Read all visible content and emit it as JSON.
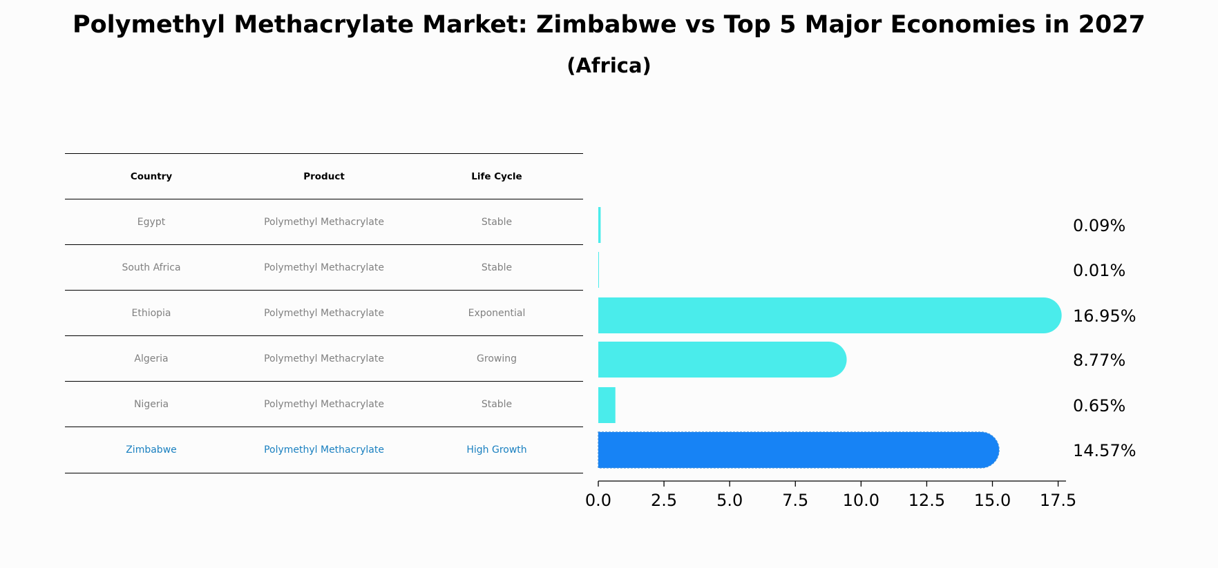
{
  "title": "Polymethyl Methacrylate Market: Zimbabwe vs Top 5 Major Economies in 2027",
  "subtitle": "(Africa)",
  "table": {
    "headers": [
      "Country",
      "Product",
      "Life Cycle"
    ],
    "rows": [
      [
        "Egypt",
        "Polymethyl Methacrylate",
        "Stable"
      ],
      [
        "South Africa",
        "Polymethyl Methacrylate",
        "Stable"
      ],
      [
        "Ethiopia",
        "Polymethyl Methacrylate",
        "Exponential"
      ],
      [
        "Algeria",
        "Polymethyl Methacrylate",
        "Growing"
      ],
      [
        "Nigeria",
        "Polymethyl Methacrylate",
        "Stable"
      ],
      [
        "Zimbabwe",
        "Polymethyl Methacrylate",
        "High Growth"
      ]
    ],
    "highlight_row": 5
  },
  "chart_data": {
    "type": "bar",
    "orientation": "horizontal",
    "categories": [
      "Egypt",
      "South Africa",
      "Ethiopia",
      "Algeria",
      "Nigeria",
      "Zimbabwe"
    ],
    "values": [
      0.09,
      0.01,
      16.95,
      8.77,
      0.65,
      14.57
    ],
    "value_labels": [
      "0.09%",
      "0.01%",
      "16.95%",
      "8.77%",
      "0.65%",
      "14.57%"
    ],
    "xlim": [
      0,
      17.8
    ],
    "xticks": [
      0.0,
      2.5,
      5.0,
      7.5,
      10.0,
      12.5,
      15.0,
      17.5
    ],
    "xtick_labels": [
      "0.0",
      "2.5",
      "5.0",
      "7.5",
      "10.0",
      "12.5",
      "15.0",
      "17.5"
    ],
    "colors": {
      "default": "#4aeceb",
      "highlight": "#1783f5"
    },
    "highlight_category": "Zimbabwe"
  }
}
